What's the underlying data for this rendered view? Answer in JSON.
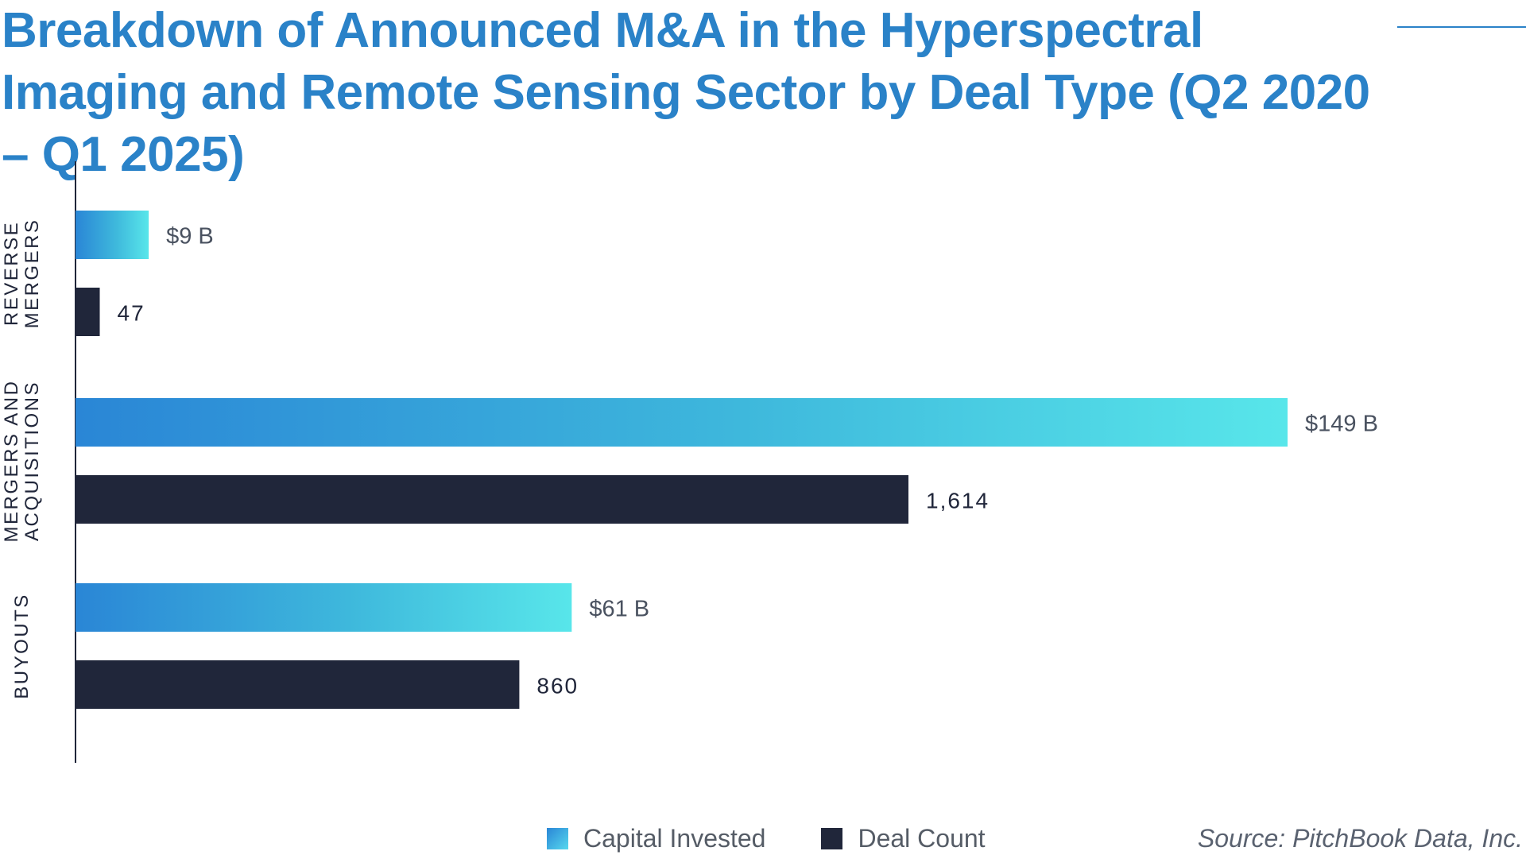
{
  "title": "Breakdown of Announced M&A in the Hyperspectral Imaging and Remote Sensing Sector by Deal Type (Q2 2020 – Q1 2025)",
  "source": "Source: PitchBook Data, Inc.",
  "legend": {
    "capital_label": "Capital Invested",
    "deals_label": "Deal Count"
  },
  "colors": {
    "capital_start": "#2a86d6",
    "capital_end": "#58e6ea",
    "deals": "#20263a",
    "title": "#2a82c8"
  },
  "chart_data": {
    "type": "bar",
    "orientation": "horizontal",
    "title": "Breakdown of Announced M&A in the Hyperspectral Imaging and Remote Sensing Sector by Deal Type (Q2 2020 – Q1 2025)",
    "categories": [
      [
        "REVERSE",
        "MERGERS"
      ],
      [
        "MERGERS AND",
        "ACQUISITIONS"
      ],
      [
        "BUYOUTS"
      ]
    ],
    "series": [
      {
        "name": "Capital Invested",
        "unit": "$B",
        "values": [
          9,
          149,
          61
        ],
        "labels": [
          "$9 B",
          "$149 B",
          "$61 B"
        ]
      },
      {
        "name": "Deal Count",
        "values": [
          47,
          1614,
          860
        ],
        "labels": [
          "47",
          "1,614",
          "860"
        ]
      }
    ],
    "legend_position": "bottom-center",
    "grid": false
  }
}
